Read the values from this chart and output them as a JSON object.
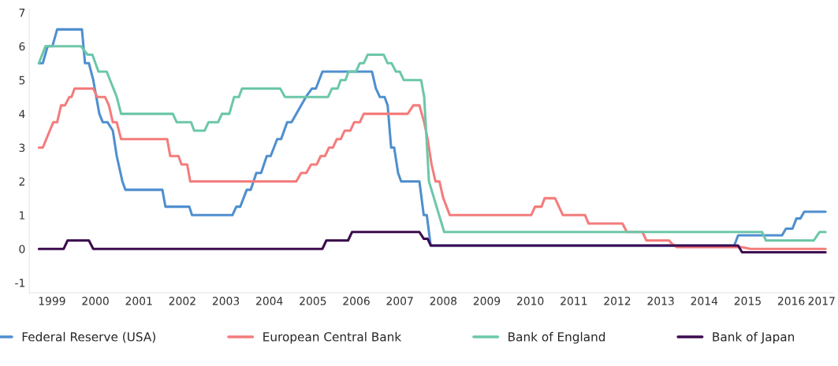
{
  "chart_data": {
    "type": "line",
    "xlim": [
      1998.78,
      2017.28
    ],
    "ylim": [
      -1.3,
      7.1
    ],
    "xticks": [
      {
        "value": 1999.3,
        "label": "1999"
      },
      {
        "value": 2000.3,
        "label": "2000"
      },
      {
        "value": 2001.3,
        "label": "2001"
      },
      {
        "value": 2002.3,
        "label": "2002"
      },
      {
        "value": 2003.3,
        "label": "2003"
      },
      {
        "value": 2004.3,
        "label": "2004"
      },
      {
        "value": 2005.3,
        "label": "2005"
      },
      {
        "value": 2006.3,
        "label": "2006"
      },
      {
        "value": 2007.3,
        "label": "2007"
      },
      {
        "value": 2008.3,
        "label": "2008"
      },
      {
        "value": 2009.3,
        "label": "2009"
      },
      {
        "value": 2010.3,
        "label": "2010"
      },
      {
        "value": 2011.3,
        "label": "2011"
      },
      {
        "value": 2012.3,
        "label": "2012"
      },
      {
        "value": 2013.3,
        "label": "2013"
      },
      {
        "value": 2014.3,
        "label": "2014"
      },
      {
        "value": 2015.3,
        "label": "2015"
      },
      {
        "value": 2016.3,
        "label": "2016"
      },
      {
        "value": 2017.0,
        "label": "2017"
      }
    ],
    "yticks": [
      -1,
      0,
      1,
      2,
      3,
      4,
      5,
      6,
      7
    ],
    "grid": false,
    "legend": "bottom",
    "marker": "none",
    "line_style": "solid",
    "series": [
      {
        "name": "Federal Reserve (USA)",
        "color": "#4f8fcf",
        "x": [
          1999.0,
          1999.09,
          1999.2,
          1999.31,
          1999.42,
          1999.99,
          2000.06,
          2000.15,
          2000.25,
          2000.39,
          2000.47,
          2000.58,
          2000.7,
          2000.79,
          2000.92,
          2000.99,
          2001.84,
          2001.91,
          2002.46,
          2002.52,
          2003.45,
          2003.54,
          2003.63,
          2003.78,
          2003.87,
          2004.0,
          2004.11,
          2004.24,
          2004.33,
          2004.48,
          2004.57,
          2004.71,
          2004.81,
          2005.14,
          2005.28,
          2005.37,
          2005.52,
          2006.66,
          2006.75,
          2006.84,
          2006.95,
          2007.02,
          2007.1,
          2007.17,
          2007.26,
          2007.33,
          2007.75,
          2007.85,
          2007.92,
          2008.01,
          2014.99,
          2015.08,
          2016.09,
          2016.18,
          2016.33,
          2016.42,
          2016.51,
          2016.6,
          2017.09
        ],
        "values": [
          5.5,
          5.5,
          6.0,
          6.0,
          6.5,
          6.5,
          5.5,
          5.5,
          5.0,
          4.0,
          3.75,
          3.75,
          3.5,
          2.75,
          2.0,
          1.75,
          1.75,
          1.25,
          1.25,
          1.0,
          1.0,
          1.25,
          1.25,
          1.75,
          1.75,
          2.25,
          2.25,
          2.75,
          2.75,
          3.25,
          3.25,
          3.75,
          3.75,
          4.5,
          4.75,
          4.75,
          5.25,
          5.25,
          4.75,
          4.5,
          4.5,
          4.25,
          3.0,
          3.0,
          2.25,
          2.0,
          2.0,
          1.0,
          1.0,
          0.1,
          0.1,
          0.4,
          0.4,
          0.6,
          0.6,
          0.9,
          0.9,
          1.1,
          1.1
        ]
      },
      {
        "name": "European Central Bank",
        "color": "#f47c7c",
        "x": [
          1999.0,
          1999.09,
          1999.33,
          1999.42,
          1999.51,
          1999.6,
          1999.7,
          1999.75,
          1999.82,
          2000.25,
          2000.34,
          2000.52,
          2000.61,
          2000.7,
          2000.79,
          2000.89,
          2001.95,
          2002.02,
          2002.21,
          2002.28,
          2002.41,
          2002.48,
          2004.92,
          2005.03,
          2005.15,
          2005.26,
          2005.39,
          2005.48,
          2005.58,
          2005.67,
          2005.76,
          2005.85,
          2005.94,
          2006.03,
          2006.16,
          2006.25,
          2006.38,
          2006.47,
          2007.48,
          2007.61,
          2007.75,
          2007.86,
          2007.94,
          2008.03,
          2008.12,
          2008.21,
          2008.3,
          2008.45,
          2010.32,
          2010.41,
          2010.56,
          2010.63,
          2010.87,
          2011.05,
          2011.56,
          2011.64,
          2012.42,
          2012.52,
          2012.88,
          2012.97,
          2013.49,
          2013.56,
          2013.67,
          2015.17,
          2015.36,
          2017.09
        ],
        "values": [
          3.0,
          3.0,
          3.75,
          3.75,
          4.25,
          4.25,
          4.5,
          4.5,
          4.75,
          4.75,
          4.5,
          4.5,
          4.25,
          3.75,
          3.75,
          3.25,
          3.25,
          2.75,
          2.75,
          2.5,
          2.5,
          2.0,
          2.0,
          2.25,
          2.25,
          2.5,
          2.5,
          2.75,
          2.75,
          3.0,
          3.0,
          3.25,
          3.25,
          3.5,
          3.5,
          3.75,
          3.75,
          4.0,
          4.0,
          4.25,
          4.25,
          3.75,
          3.25,
          2.5,
          2.0,
          2.0,
          1.5,
          1.0,
          1.0,
          1.25,
          1.25,
          1.5,
          1.5,
          1.0,
          1.0,
          0.75,
          0.75,
          0.5,
          0.5,
          0.25,
          0.25,
          0.15,
          0.05,
          0.05,
          0.0,
          0.0
        ]
      },
      {
        "name": "Bank of England",
        "color": "#6cc7a8",
        "x": [
          1999.0,
          1999.15,
          1999.97,
          2000.12,
          2000.23,
          2000.37,
          2000.56,
          2000.79,
          2000.89,
          2002.08,
          2002.17,
          2002.5,
          2002.57,
          2002.81,
          2002.9,
          2003.12,
          2003.21,
          2003.38,
          2003.49,
          2003.6,
          2003.67,
          2004.55,
          2004.66,
          2005.65,
          2005.74,
          2005.87,
          2005.94,
          2006.05,
          2006.12,
          2006.29,
          2006.38,
          2006.47,
          2006.56,
          2006.93,
          2007.02,
          2007.11,
          2007.21,
          2007.3,
          2007.39,
          2007.79,
          2007.86,
          2007.97,
          2008.32,
          2015.63,
          2015.72,
          2016.82,
          2016.95,
          2017.09
        ],
        "values": [
          5.5,
          6.0,
          6.0,
          5.75,
          5.75,
          5.25,
          5.25,
          4.5,
          4.0,
          4.0,
          3.75,
          3.75,
          3.5,
          3.5,
          3.75,
          3.75,
          4.0,
          4.0,
          4.5,
          4.5,
          4.75,
          4.75,
          4.5,
          4.5,
          4.75,
          4.75,
          5.0,
          5.0,
          5.25,
          5.25,
          5.5,
          5.5,
          5.75,
          5.75,
          5.5,
          5.5,
          5.25,
          5.25,
          5.0,
          5.0,
          4.5,
          2.0,
          0.5,
          0.5,
          0.25,
          0.25,
          0.5,
          0.5
        ]
      },
      {
        "name": "Bank of Japan",
        "color": "#3d0b4f",
        "x": [
          1999.0,
          1999.57,
          1999.66,
          2000.15,
          2000.25,
          2005.52,
          2005.61,
          2006.11,
          2006.2,
          2007.75,
          2007.85,
          2007.94,
          2008.01,
          2015.08,
          2015.17,
          2017.09
        ],
        "values": [
          0.0,
          0.0,
          0.25,
          0.25,
          0.0,
          0.0,
          0.25,
          0.25,
          0.5,
          0.5,
          0.3,
          0.3,
          0.1,
          0.1,
          -0.1,
          -0.1
        ]
      }
    ]
  }
}
